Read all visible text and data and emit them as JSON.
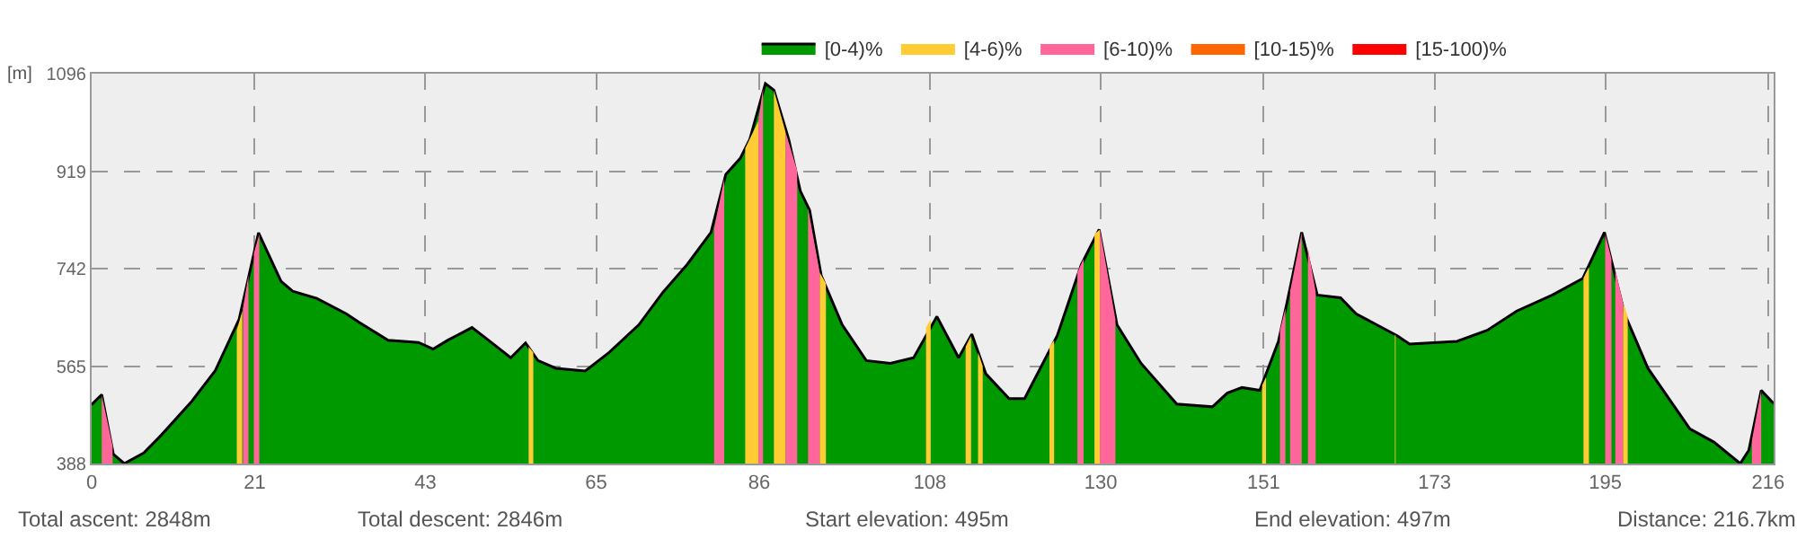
{
  "chart_data": {
    "type": "area",
    "ylabel": "[m]",
    "xlim": [
      0,
      216.7
    ],
    "xticks": [
      0,
      21,
      43,
      65,
      86,
      108,
      130,
      151,
      173,
      195,
      216
    ],
    "ylim": [
      388,
      1096
    ],
    "yticks": [
      388,
      565,
      742,
      919,
      1096
    ],
    "grid": true,
    "legend": "top",
    "series": [
      {
        "name": "[0-4)%",
        "color": "#009900",
        "x": [
          0,
          1.3,
          2.8,
          4.2,
          6.7,
          9.0,
          12.9,
          15.9,
          19.0,
          20.5,
          21.5,
          24.4,
          25.9,
          29.0,
          32.8,
          34.4,
          38.2,
          42.1,
          44.0,
          45.9,
          49.0,
          51.3,
          54.0,
          55.9,
          57.5,
          59.8,
          63.6,
          66.7,
          70.5,
          73.6,
          76.7,
          79.8,
          81.7,
          83.6,
          84.8,
          86.8,
          87.9,
          89.8,
          91.3,
          92.5,
          94.0,
          96.7,
          99.8,
          102.9,
          105.9,
          108.9,
          111.7,
          113.4,
          115.2,
          118.2,
          120.2,
          121.3,
          124.4,
          127.5,
          129.8,
          132.1,
          135.2,
          139.8,
          144.4,
          146.3,
          148.2,
          150.5,
          152.9,
          154.0,
          155.9,
          157.9,
          160.9,
          162.9,
          168.2,
          169.8,
          175.9,
          179.8,
          183.6,
          188.2,
          192.1,
          194.9,
          197.5,
          200.5,
          205.9,
          209.0,
          212.4,
          213.5,
          215.1,
          216.7
        ],
        "values": [
          495,
          513,
          405,
          388,
          407,
          440,
          501,
          556,
          650,
          744,
          807,
          719,
          701,
          688,
          660,
          645,
          612,
          608,
          596,
          612,
          635,
          610,
          580,
          607,
          575,
          561,
          556,
          590,
          640,
          699,
          749,
          808,
          913,
          943,
          977,
          1078,
          1066,
          977,
          883,
          848,
          729,
          640,
          575,
          570,
          580,
          655,
          580,
          623,
          551,
          506,
          506,
          536,
          620,
          749,
          813,
          640,
          570,
          496,
          491,
          516,
          526,
          521,
          610,
          680,
          808,
          694,
          689,
          660,
          620,
          605,
          610,
          630,
          665,
          694,
          724,
          808,
          660,
          561,
          451,
          427,
          388,
          412,
          521,
          497
        ]
      },
      {
        "name": "[4-6)%",
        "color": "#ffcc33",
        "x": [
          18.7,
          19.4,
          null,
          56.3,
          56.9,
          null,
          84.2,
          85.9,
          null,
          87.9,
          89.4,
          null,
          93.8,
          94.6,
          null,
          107.5,
          108.1,
          null,
          112.6,
          113.3,
          null,
          114.2,
          114.8,
          null,
          123.4,
          124.0,
          null,
          129.2,
          129.9,
          null,
          150.8,
          151.3,
          null,
          167.9,
          168.0,
          null,
          192.2,
          192.9,
          null,
          197.3,
          197.9
        ],
        "values": [
          630,
          665,
          null,
          600,
          590,
          null,
          960,
          1010,
          null,
          1066,
          990,
          null,
          735,
          715,
          null,
          635,
          650,
          null,
          600,
          620,
          null,
          590,
          565,
          null,
          600,
          612,
          null,
          805,
          813,
          null,
          530,
          545,
          null,
          622,
          621,
          null,
          725,
          745,
          null,
          680,
          655
        ]
      },
      {
        "name": "[6-10)%",
        "color": "#ff6699",
        "x": [
          1.3,
          2.7,
          null,
          19.5,
          20.2,
          null,
          20.9,
          21.6,
          null,
          80.2,
          81.5,
          null,
          85.9,
          86.5,
          null,
          89.4,
          90.9,
          null,
          92.3,
          93.8,
          null,
          127.0,
          127.8,
          null,
          129.9,
          131.9,
          null,
          153.1,
          153.8,
          null,
          154.4,
          155.9,
          null,
          156.7,
          157.7,
          null,
          195.0,
          195.8,
          null,
          196.3,
          197.3,
          null,
          213.9,
          215.1
        ],
        "values": [
          513,
          420,
          null,
          670,
          730,
          null,
          770,
          805,
          null,
          815,
          905,
          null,
          1010,
          1070,
          null,
          990,
          920,
          null,
          852,
          735,
          null,
          735,
          760,
          null,
          813,
          650,
          null,
          630,
          670,
          null,
          700,
          808,
          null,
          780,
          700,
          null,
          805,
          760,
          null,
          740,
          680,
          null,
          430,
          521
        ]
      },
      {
        "name": "[10-15)%",
        "color": "#ff6600"
      },
      {
        "name": "[15-100)%",
        "color": "#ff0000"
      }
    ],
    "annotations": [
      "Total ascent: 2848m",
      "Total descent: 2846m",
      "Start elevation: 495m",
      "End elevation: 497m",
      "Distance: 216.7km"
    ]
  }
}
